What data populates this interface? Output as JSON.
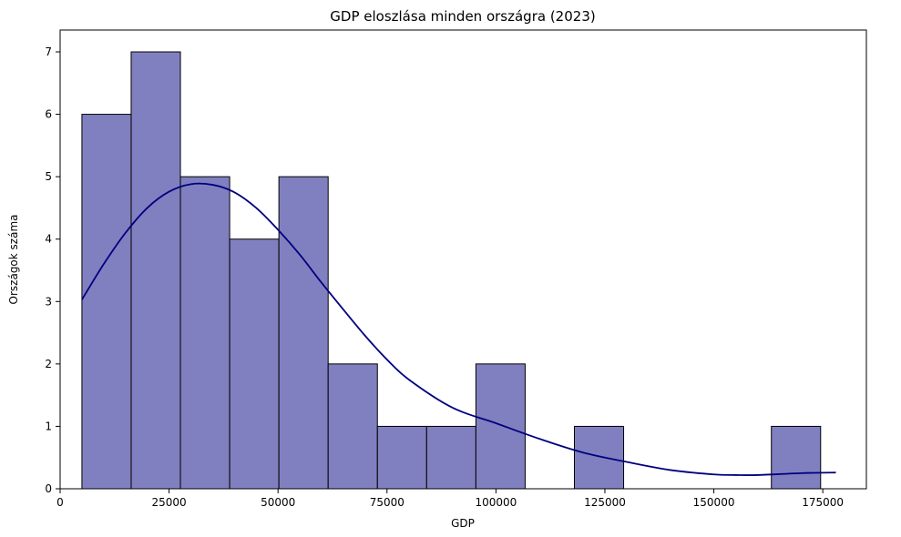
{
  "chart_data": {
    "type": "histogram",
    "title": "GDP eloszlása minden országra (2023)",
    "xlabel": "GDP",
    "ylabel": "Országok száma",
    "xlim": [
      0,
      185000
    ],
    "ylim": [
      0,
      7.35
    ],
    "xticks": [
      0,
      25000,
      50000,
      75000,
      100000,
      125000,
      150000,
      175000
    ],
    "xtick_labels": [
      "0",
      "25000",
      "50000",
      "75000",
      "100000",
      "125000",
      "150000",
      "175000"
    ],
    "yticks": [
      0,
      1,
      2,
      3,
      4,
      5,
      6,
      7
    ],
    "ytick_labels": [
      "0",
      "1",
      "2",
      "3",
      "4",
      "5",
      "6",
      "7"
    ],
    "bin_start": 5000,
    "bin_width": 11300,
    "counts": [
      6,
      7,
      5,
      4,
      5,
      2,
      1,
      1,
      2,
      0,
      1,
      0,
      0,
      0,
      1
    ],
    "bar_color": "#8080c0",
    "bar_edge_color": "#000000",
    "kde": {
      "color": "#00007f",
      "x": [
        5000,
        10000,
        15000,
        20000,
        25000,
        30000,
        35000,
        40000,
        45000,
        50000,
        55000,
        60000,
        65000,
        70000,
        75000,
        80000,
        90000,
        100000,
        110000,
        120000,
        130000,
        140000,
        150000,
        155000,
        160000,
        170000,
        178000
      ],
      "y": [
        3.03,
        3.6,
        4.1,
        4.5,
        4.76,
        4.88,
        4.87,
        4.75,
        4.5,
        4.15,
        3.75,
        3.3,
        2.87,
        2.45,
        2.07,
        1.75,
        1.3,
        1.05,
        0.8,
        0.58,
        0.43,
        0.3,
        0.23,
        0.22,
        0.22,
        0.25,
        0.26
      ]
    },
    "grid": false,
    "legend": "none"
  }
}
